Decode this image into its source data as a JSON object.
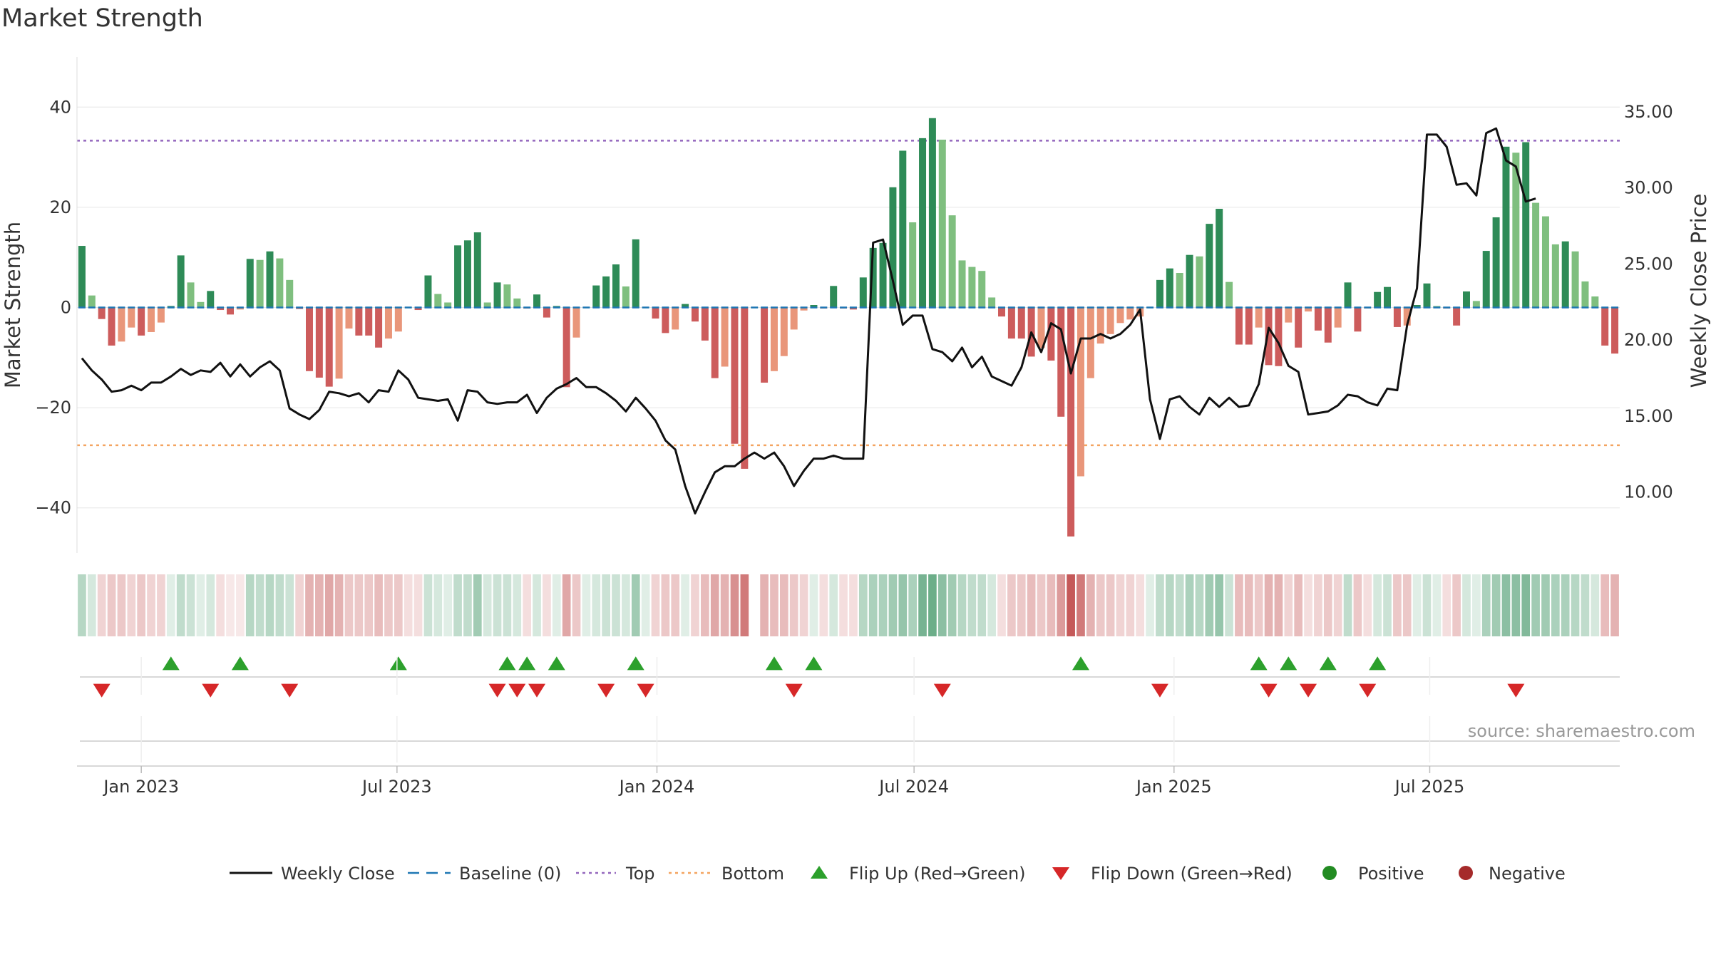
{
  "colors": {
    "pos_strong": "#2e8b57",
    "pos_weak": "#7fbf7f",
    "neg_strong": "#cd5c5c",
    "neg_weak": "#e9967a",
    "price": "#111111",
    "baseline": "#1f77b4",
    "top": "#9467bd",
    "bottom": "#f4a460",
    "flip_up": "#2ca02c",
    "flip_down": "#d62728",
    "heat_pos": "#2e8b57",
    "heat_neg": "#b22222"
  },
  "chart_data": {
    "type": "bar",
    "title": "Market Strength",
    "ylabel": "Market Strength",
    "y2label": "Weekly Close Price",
    "ylim": [
      -49,
      50
    ],
    "y2lim": [
      6.0,
      38.6
    ],
    "yticks": [
      "40",
      "20",
      "0",
      "−20",
      "−40"
    ],
    "y2ticks": [
      "35.00",
      "30.00",
      "25.00",
      "20.00",
      "15.00",
      "10.00"
    ],
    "x_ticks": [
      "Jan 2023",
      "Jul 2023",
      "Jan 2024",
      "Jul 2024",
      "Jan 2025",
      "Jul 2025"
    ],
    "top_level": 33.3,
    "bottom_level": -27.5,
    "baseline": 0,
    "start_week": "2022-11-20",
    "strength": [
      12.3,
      2.4,
      -2.3,
      -7.6,
      -6.8,
      -4.0,
      -5.6,
      -4.9,
      -3.0,
      0.3,
      10.4,
      5.0,
      1.1,
      3.3,
      -0.5,
      -1.4,
      -0.4,
      9.7,
      9.5,
      11.2,
      9.8,
      5.5,
      -0.3,
      -12.7,
      -14.0,
      -15.8,
      -14.2,
      -4.2,
      -5.6,
      -5.6,
      -8.0,
      -6.2,
      -4.8,
      -0.1,
      -0.5,
      6.4,
      2.7,
      1.0,
      12.4,
      13.4,
      15.0,
      1.0,
      5.0,
      4.6,
      1.8,
      -0.2,
      2.6,
      -2.0,
      0.3,
      -15.9,
      -6.0,
      0.1,
      4.4,
      6.2,
      8.6,
      4.2,
      13.6,
      0.1,
      -2.2,
      -5.1,
      -4.4,
      0.7,
      -2.8,
      -6.6,
      -14.1,
      -11.8,
      -27.2,
      -32.2,
      0.0,
      -15.0,
      -12.7,
      -9.7,
      -4.4,
      -0.6,
      0.5,
      -0.2,
      4.3,
      -0.2,
      -0.4,
      6.0,
      11.9,
      12.9,
      24.0,
      31.3,
      17.0,
      33.8,
      37.8,
      33.5,
      18.4,
      9.4,
      8.1,
      7.3,
      2.0,
      -1.8,
      -6.2,
      -6.2,
      -9.8,
      -8.1,
      -10.6,
      -21.8,
      -45.7,
      -33.7,
      -14.1,
      -7.2,
      -5.3,
      -3.1,
      -2.4,
      -1.8,
      0.0,
      5.5,
      7.8,
      6.9,
      10.5,
      10.2,
      16.7,
      19.7,
      5.1,
      -7.4,
      -7.4,
      -4.0,
      -11.5,
      -11.7,
      -3.0,
      -8.0,
      -0.8,
      -4.6,
      -7.0,
      -4.0,
      5.0,
      -4.8,
      -0.2,
      3.1,
      4.1,
      -3.9,
      -3.6,
      0.5,
      4.8,
      0.3,
      -0.2,
      -3.6,
      3.2,
      1.3,
      11.3,
      18.0,
      32.1,
      30.9,
      33.0,
      20.9,
      18.2,
      12.6,
      13.2,
      11.2,
      5.2,
      2.2,
      -7.6,
      -9.2
    ],
    "price": [
      18.8,
      18.0,
      17.4,
      16.6,
      16.7,
      17.0,
      16.7,
      17.2,
      17.2,
      17.6,
      18.1,
      17.7,
      18.0,
      17.9,
      18.5,
      17.6,
      18.4,
      17.6,
      18.2,
      18.6,
      18.0,
      15.5,
      15.1,
      14.8,
      15.4,
      16.6,
      16.5,
      16.3,
      16.5,
      15.9,
      16.7,
      16.6,
      18.0,
      17.4,
      16.2,
      16.1,
      16.0,
      16.1,
      14.7,
      16.7,
      16.6,
      15.9,
      15.8,
      15.9,
      15.9,
      16.4,
      15.2,
      16.2,
      16.8,
      17.1,
      17.5,
      16.9,
      16.9,
      16.5,
      16.0,
      15.3,
      16.2,
      15.5,
      14.7,
      13.4,
      12.8,
      10.4,
      8.6,
      10.0,
      11.3,
      11.7,
      11.7,
      12.2,
      12.6,
      12.2,
      12.6,
      11.7,
      10.4,
      11.4,
      12.2,
      12.2,
      12.4,
      12.2,
      12.2,
      12.2,
      26.4,
      26.6,
      23.9,
      21.0,
      21.6,
      21.6,
      19.4,
      19.2,
      18.6,
      19.5,
      18.2,
      18.9,
      17.6,
      17.3,
      17.0,
      18.2,
      20.5,
      19.2,
      21.1,
      20.7,
      17.8,
      20.1,
      20.1,
      20.4,
      20.1,
      20.4,
      21.0,
      22.0,
      16.1,
      13.5,
      16.1,
      16.3,
      15.6,
      15.1,
      16.2,
      15.6,
      16.2,
      15.6,
      15.7,
      17.1,
      20.8,
      19.8,
      18.3,
      17.9,
      15.1,
      15.2,
      15.3,
      15.7,
      16.4,
      16.3,
      15.9,
      15.7,
      16.8,
      16.7,
      21.0,
      23.4,
      33.5,
      33.5,
      32.7,
      30.2,
      30.3,
      29.5,
      33.6,
      33.9,
      31.8,
      31.4,
      29.1,
      29.3
    ],
    "flip_up_weeks": [
      9,
      16,
      32,
      43,
      45,
      48,
      56,
      70,
      74,
      101,
      119,
      122,
      126,
      131
    ],
    "flip_down_weeks": [
      2,
      13,
      21,
      42,
      44,
      46,
      53,
      57,
      72,
      87,
      109,
      120,
      124,
      130,
      145
    ],
    "heat_intensity": [
      0.35,
      0.2,
      0.2,
      0.25,
      0.25,
      0.2,
      0.25,
      0.2,
      0.2,
      0.15,
      0.3,
      0.25,
      0.15,
      0.2,
      0.15,
      0.1,
      0.1,
      0.35,
      0.3,
      0.35,
      0.3,
      0.25,
      0.2,
      0.35,
      0.35,
      0.4,
      0.35,
      0.25,
      0.25,
      0.25,
      0.3,
      0.25,
      0.25,
      0.15,
      0.15,
      0.25,
      0.2,
      0.15,
      0.3,
      0.3,
      0.45,
      0.2,
      0.25,
      0.25,
      0.2,
      0.15,
      0.2,
      0.15,
      0.15,
      0.4,
      0.25,
      0.15,
      0.2,
      0.25,
      0.25,
      0.2,
      0.45,
      0.15,
      0.2,
      0.25,
      0.25,
      0.15,
      0.2,
      0.3,
      0.4,
      0.35,
      0.5,
      0.6,
      0.0,
      0.35,
      0.3,
      0.3,
      0.25,
      0.2,
      0.15,
      0.15,
      0.2,
      0.15,
      0.15,
      0.35,
      0.4,
      0.4,
      0.45,
      0.5,
      0.4,
      0.65,
      0.7,
      0.55,
      0.45,
      0.35,
      0.3,
      0.3,
      0.2,
      0.15,
      0.25,
      0.25,
      0.3,
      0.25,
      0.3,
      0.45,
      0.75,
      0.6,
      0.35,
      0.25,
      0.25,
      0.2,
      0.2,
      0.15,
      0.15,
      0.3,
      0.35,
      0.3,
      0.4,
      0.35,
      0.45,
      0.5,
      0.25,
      0.3,
      0.3,
      0.25,
      0.35,
      0.35,
      0.2,
      0.3,
      0.15,
      0.2,
      0.25,
      0.2,
      0.3,
      0.25,
      0.15,
      0.2,
      0.25,
      0.25,
      0.25,
      0.15,
      0.25,
      0.15,
      0.15,
      0.25,
      0.2,
      0.15,
      0.4,
      0.45,
      0.55,
      0.55,
      0.6,
      0.45,
      0.45,
      0.4,
      0.4,
      0.35,
      0.3,
      0.2,
      0.3,
      0.35
    ],
    "legend": [
      {
        "label": "Weekly Close",
        "kind": "line"
      },
      {
        "label": "Baseline (0)",
        "kind": "dash"
      },
      {
        "label": "Top",
        "kind": "dot-top"
      },
      {
        "label": "Bottom",
        "kind": "dot-bottom"
      },
      {
        "label": "Flip Up (Red→Green)",
        "kind": "tri-up"
      },
      {
        "label": "Flip Down (Green→Red)",
        "kind": "tri-down"
      },
      {
        "label": "Positive",
        "kind": "dot-pos"
      },
      {
        "label": "Negative",
        "kind": "dot-neg"
      }
    ],
    "legend_placement": "bottom"
  },
  "source": "source: sharemaestro.com"
}
